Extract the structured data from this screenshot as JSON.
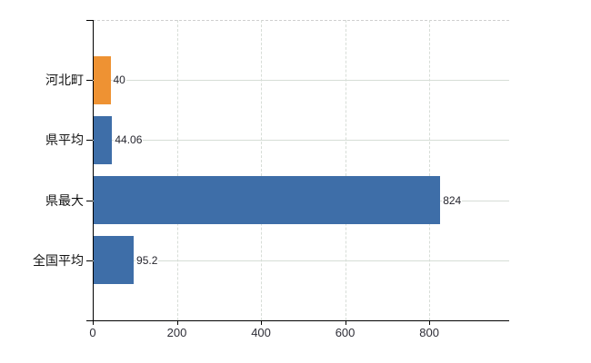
{
  "chart_data": {
    "type": "bar",
    "orientation": "horizontal",
    "title": "",
    "xlabel": "",
    "ylabel": "",
    "categories": [
      "河北町",
      "県平均",
      "県最大",
      "全国平均"
    ],
    "values": [
      40,
      44.06,
      824,
      95.2
    ],
    "value_labels": [
      "40",
      "44.06",
      "824",
      "95.2"
    ],
    "bar_colors": [
      "#ee9233",
      "#3e6ea8",
      "#3e6ea8",
      "#3e6ea8"
    ],
    "x_ticks": [
      0,
      200,
      400,
      600,
      800
    ],
    "x_tick_labels": [
      "0",
      "200",
      "400",
      "600",
      "800"
    ],
    "xlim": [
      0,
      990
    ],
    "grid": true,
    "legend": false,
    "colors": {
      "highlight_bar": "#ee9233",
      "default_bar": "#3e6ea8",
      "gridline": "#d6ddd6",
      "axis": "#000000"
    }
  }
}
